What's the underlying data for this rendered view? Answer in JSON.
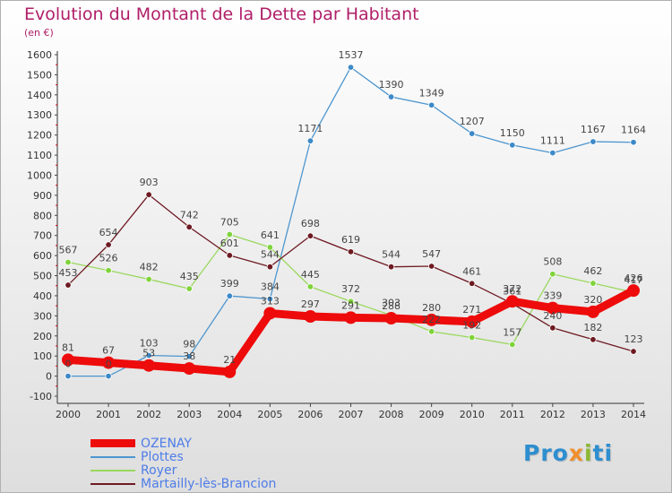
{
  "title": "Evolution du Montant de la Dette par Habitant",
  "subtitle": "(en €)",
  "logo": {
    "parts": [
      "Pro",
      "x",
      "i",
      "ti"
    ],
    "colors": [
      "#2d8ed0",
      "#f28f2a",
      "#8cb832",
      "#2d8ed0"
    ]
  },
  "chart_data": {
    "type": "line",
    "title": "Evolution du Montant de la Dette par Habitant",
    "subtitle": "(en €)",
    "x": [
      2000,
      2001,
      2002,
      2003,
      2004,
      2005,
      2006,
      2007,
      2008,
      2009,
      2010,
      2011,
      2012,
      2013,
      2014
    ],
    "ylim": [
      -100,
      1600
    ],
    "yticks": [
      -100,
      0,
      100,
      200,
      300,
      400,
      500,
      600,
      700,
      800,
      900,
      1000,
      1100,
      1200,
      1300,
      1400,
      1500,
      1600
    ],
    "grid": false,
    "legend": "bottom-left",
    "series": [
      {
        "name": "Plottes",
        "color": "#4d96cf",
        "marker": "#3c89c8",
        "values": [
          0,
          0,
          103,
          98,
          399,
          384,
          1171,
          1537,
          1390,
          1349,
          1207,
          1150,
          1111,
          1167,
          1164
        ]
      },
      {
        "name": "Royer",
        "color": "#9ad85e",
        "marker": "#7fd33a",
        "values": [
          567,
          526,
          482,
          435,
          705,
          641,
          445,
          372,
          303,
          222,
          192,
          157,
          508,
          462,
          417
        ]
      },
      {
        "name": "Martailly-lès-Brancion",
        "color": "#6e1a22",
        "marker": "#6e1a22",
        "values": [
          453,
          654,
          903,
          742,
          601,
          544,
          698,
          619,
          544,
          547,
          461,
          361,
          240,
          182,
          123
        ]
      },
      {
        "name": "OZENAY",
        "color": "#ee0b0b",
        "marker": "#ee0b0b",
        "values": [
          81,
          67,
          53,
          38,
          21,
          313,
          297,
          291,
          288,
          280,
          271,
          372,
          339,
          320,
          426
        ]
      }
    ],
    "labels": [
      {
        "series": "Plottes",
        "text": [
          "0",
          "0",
          "103",
          "98",
          "399",
          "384",
          "1171",
          "1537",
          "1390",
          "1349",
          "1207",
          "1150",
          "1111",
          "1167",
          "1164"
        ]
      },
      {
        "series": "Royer",
        "text": [
          "567",
          "526",
          "482",
          "435",
          "705",
          "641",
          "445",
          "372",
          "303",
          "222",
          "192",
          "157",
          "508",
          "462",
          "417"
        ]
      },
      {
        "series": "Martailly-lès-Brancion",
        "text": [
          "453",
          "654",
          "903",
          "742",
          "601",
          "544",
          "698",
          "619",
          "544",
          "547",
          "461",
          "361",
          "240",
          "182",
          "123"
        ]
      },
      {
        "series": "OZENAY",
        "text": [
          "81",
          "67",
          "53",
          "38",
          "21",
          "313",
          "297",
          "291",
          "288",
          "280",
          "271",
          "372",
          "339",
          "320",
          "426"
        ]
      }
    ]
  }
}
